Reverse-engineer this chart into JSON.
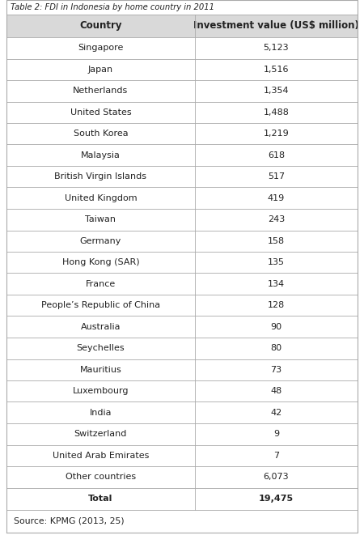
{
  "title": "Table 2: FDI in Indonesia by home country in 2011",
  "col1_header": "Country",
  "col2_header": "Investment value (US$ million)",
  "rows": [
    [
      "Singapore",
      "5,123"
    ],
    [
      "Japan",
      "1,516"
    ],
    [
      "Netherlands",
      "1,354"
    ],
    [
      "United States",
      "1,488"
    ],
    [
      "South Korea",
      "1,219"
    ],
    [
      "Malaysia",
      "618"
    ],
    [
      "British Virgin Islands",
      "517"
    ],
    [
      "United Kingdom",
      "419"
    ],
    [
      "Taiwan",
      "243"
    ],
    [
      "Germany",
      "158"
    ],
    [
      "Hong Kong (SAR)",
      "135"
    ],
    [
      "France",
      "134"
    ],
    [
      "People’s Republic of China",
      "128"
    ],
    [
      "Australia",
      "90"
    ],
    [
      "Seychelles",
      "80"
    ],
    [
      "Mauritius",
      "73"
    ],
    [
      "Luxembourg",
      "48"
    ],
    [
      "India",
      "42"
    ],
    [
      "Switzerland",
      "9"
    ],
    [
      "United Arab Emirates",
      "7"
    ],
    [
      "Other countries",
      "6,073"
    ]
  ],
  "total_label": "Total",
  "total_value": "19,475",
  "source": "Source: KPMG (2013, 25)",
  "bg_color": "#ffffff",
  "header_bg": "#d9d9d9",
  "row_bg": "#ffffff",
  "line_color": "#aaaaaa",
  "text_color": "#222222",
  "title_fontsize": 7.2,
  "header_fontsize": 8.5,
  "cell_fontsize": 8.0,
  "source_fontsize": 7.8,
  "col_split": 0.535
}
